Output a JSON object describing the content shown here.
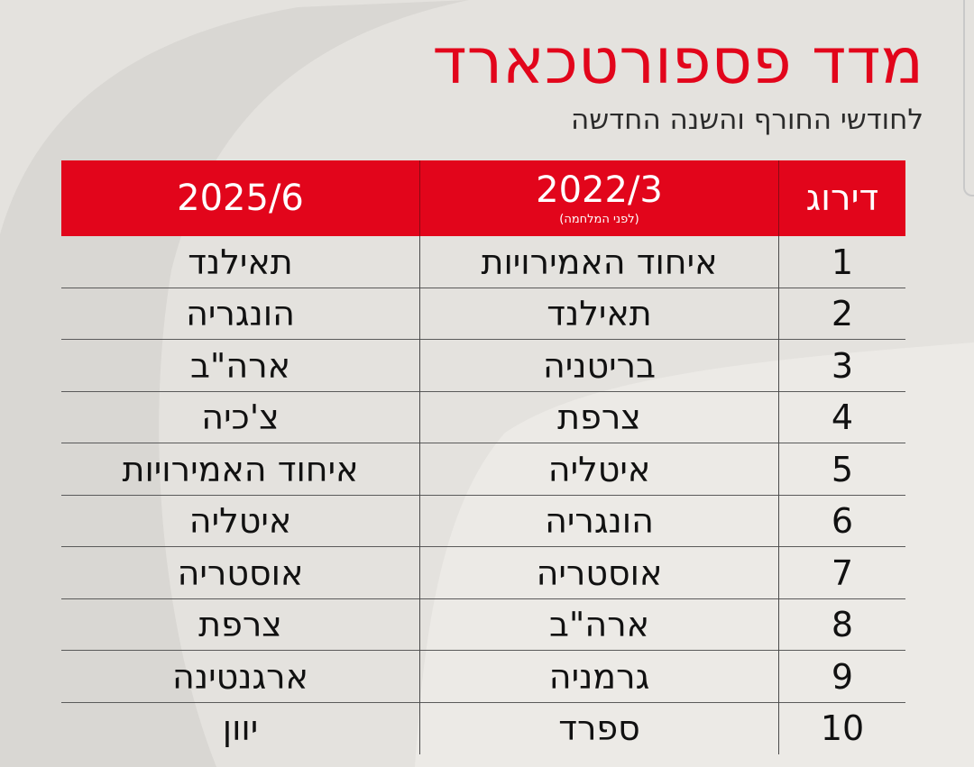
{
  "title": "מדד פספורטכארד",
  "subtitle": "לחודשי החורף והשנה החדשה",
  "chart_data": {
    "type": "table",
    "columns": [
      {
        "label": "דירוג",
        "note": ""
      },
      {
        "label": "2022/3",
        "note": "(לפני המלחמה)"
      },
      {
        "label": "2025/6",
        "note": ""
      }
    ],
    "rows": [
      {
        "rank": "1",
        "y2022": "איחוד האמירויות",
        "y2025": "תאילנד"
      },
      {
        "rank": "2",
        "y2022": "תאילנד",
        "y2025": "הונגריה"
      },
      {
        "rank": "3",
        "y2022": "בריטניה",
        "y2025": "ארה\"ב"
      },
      {
        "rank": "4",
        "y2022": "צרפת",
        "y2025": "צ'כיה"
      },
      {
        "rank": "5",
        "y2022": "איטליה",
        "y2025": "איחוד האמירויות"
      },
      {
        "rank": "6",
        "y2022": "הונגריה",
        "y2025": "איטליה"
      },
      {
        "rank": "7",
        "y2022": "אוסטריה",
        "y2025": "אוסטריה"
      },
      {
        "rank": "8",
        "y2022": "ארה\"ב",
        "y2025": "צרפת"
      },
      {
        "rank": "9",
        "y2022": "גרמניה",
        "y2025": "ארגנטינה"
      },
      {
        "rank": "10",
        "y2022": "ספרד",
        "y2025": "יוון"
      }
    ]
  },
  "colors": {
    "accent": "#e2051b",
    "background": "#e4e2de",
    "text": "#111111"
  }
}
